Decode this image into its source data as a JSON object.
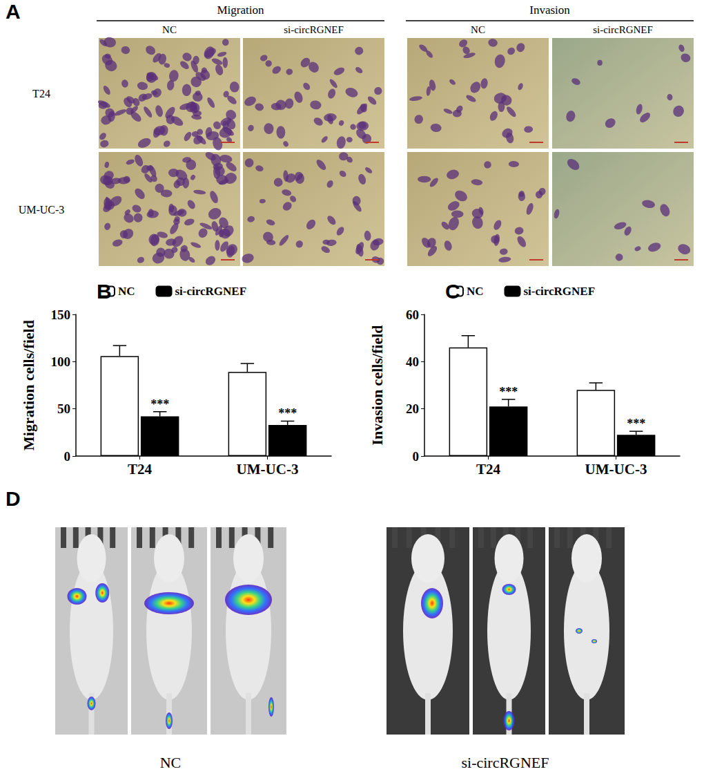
{
  "chart_data": [
    {
      "type": "bar",
      "y_label": "Migration cells/field",
      "categories": [
        "T24",
        "UM-UC-3"
      ],
      "series": [
        {
          "name": "NC",
          "color": "#ffffff",
          "values": [
            106,
            89
          ],
          "errors": [
            11,
            9
          ]
        },
        {
          "name": "si-circRGNEF",
          "color": "#000000",
          "values": [
            42,
            33
          ],
          "errors": [
            5,
            4
          ]
        }
      ],
      "ylim": [
        0,
        150
      ],
      "yticks": [
        0,
        50,
        100,
        150
      ],
      "legend": "top",
      "annotations": [
        {
          "category": "T24",
          "series": "si-circRGNEF",
          "text": "***"
        },
        {
          "category": "UM-UC-3",
          "series": "si-circRGNEF",
          "text": "***"
        }
      ]
    },
    {
      "type": "bar",
      "y_label": "Invasion cells/field",
      "categories": [
        "T24",
        "UM-UC-3"
      ],
      "series": [
        {
          "name": "NC",
          "color": "#ffffff",
          "values": [
            46,
            28
          ],
          "errors": [
            5,
            3
          ]
        },
        {
          "name": "si-circRGNEF",
          "color": "#000000",
          "values": [
            21,
            9
          ],
          "errors": [
            3,
            1.5
          ]
        }
      ],
      "ylim": [
        0,
        60
      ],
      "yticks": [
        0,
        20,
        40,
        60
      ],
      "legend": "top",
      "annotations": [
        {
          "category": "T24",
          "series": "si-circRGNEF",
          "text": "***"
        },
        {
          "category": "UM-UC-3",
          "series": "si-circRGNEF",
          "text": "***"
        }
      ]
    }
  ],
  "figure": {
    "panel_labels": [
      "A",
      "B",
      "C",
      "D"
    ],
    "panel_a": {
      "headers": [
        "Migration",
        "Invasion"
      ],
      "columns": [
        "NC",
        "si-circRGNEF",
        "NC",
        "si-circRGNEF"
      ],
      "rows": [
        "T24",
        "UM-UC-3"
      ]
    },
    "panel_d": {
      "groups": [
        "NC",
        "si-circRGNEF"
      ]
    }
  }
}
